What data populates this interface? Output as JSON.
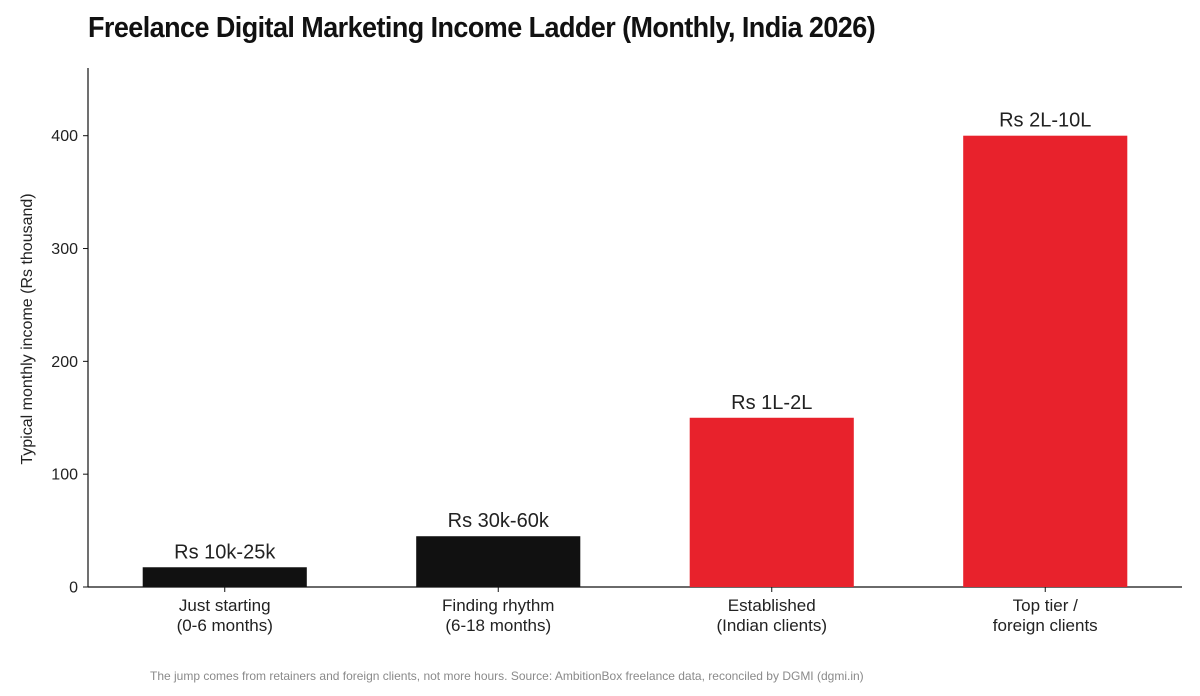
{
  "chart_data": {
    "type": "bar",
    "title": "Freelance Digital Marketing Income Ladder (Monthly, India 2026)",
    "ylabel": "Typical monthly income (Rs thousand)",
    "xlabel": "",
    "ylim": [
      0,
      460
    ],
    "yticks": [
      0,
      100,
      200,
      300,
      400
    ],
    "grid": false,
    "categories": [
      [
        "Just starting",
        "(0-6 months)"
      ],
      [
        "Finding rhythm",
        "(6-18 months)"
      ],
      [
        "Established",
        "(Indian clients)"
      ],
      [
        "Top tier /",
        "foreign clients"
      ]
    ],
    "values": [
      17.5,
      45,
      150,
      400
    ],
    "data_labels": [
      "Rs 10k-25k",
      "Rs 30k-60k",
      "Rs 1L-2L",
      "Rs 2L-10L"
    ],
    "colors": [
      "#111111",
      "#111111",
      "#e8222c",
      "#e8222c"
    ],
    "footnote": "The jump comes from retainers and foreign clients, not more hours. Source: AmbitionBox freelance data, reconciled by DGMI (dgmi.in)"
  }
}
